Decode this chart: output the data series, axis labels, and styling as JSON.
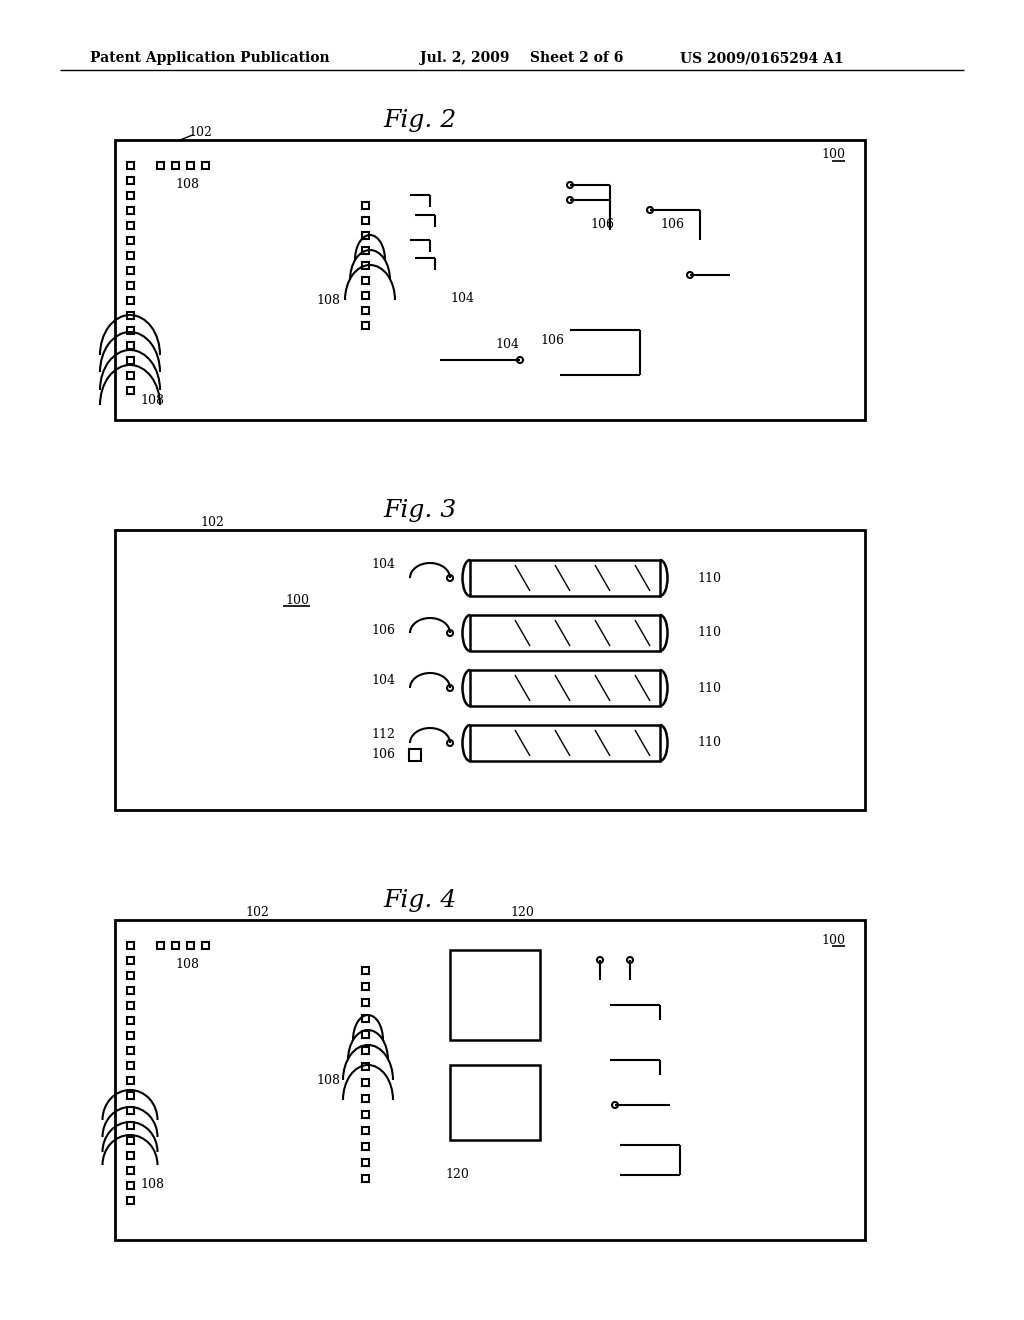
{
  "bg_color": "#ffffff",
  "header_text": "Patent Application Publication",
  "header_date": "Jul. 2, 2009",
  "header_sheet": "Sheet 2 of 6",
  "header_patent": "US 2009/0165294 A1",
  "fig2_title": "Fig. 2",
  "fig3_title": "Fig. 3",
  "fig4_title": "Fig. 4",
  "label_100": "100",
  "label_102": "102",
  "label_104": "104",
  "label_106": "106",
  "label_108": "108",
  "label_110": "110",
  "label_112": "112",
  "label_120": "120",
  "line_color": "#000000",
  "lw": 1.5
}
